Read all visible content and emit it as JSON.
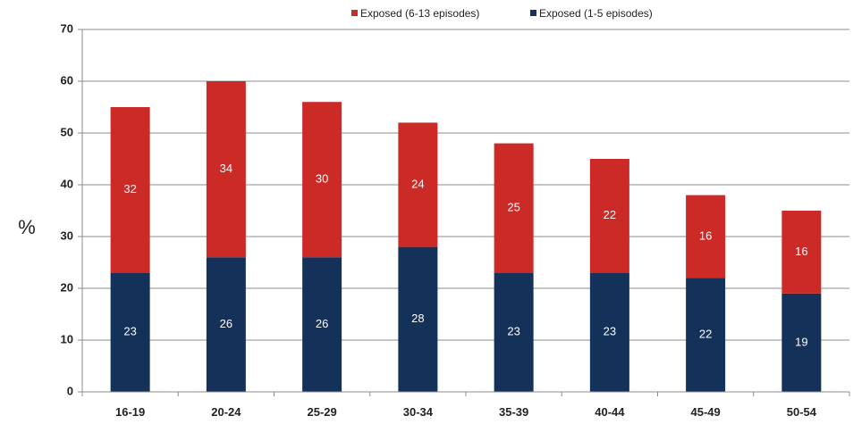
{
  "chart_data": {
    "type": "bar",
    "stacked": true,
    "categories": [
      "16-19",
      "20-24",
      "25-29",
      "30-34",
      "35-39",
      "40-44",
      "45-49",
      "50-54"
    ],
    "series": [
      {
        "name": "Exposed (1-5 episodes)",
        "values": [
          23,
          26,
          26,
          28,
          23,
          23,
          22,
          19
        ],
        "color": "#14315a"
      },
      {
        "name": "Exposed (6-13 episodes)",
        "values": [
          32,
          34,
          30,
          24,
          25,
          22,
          16,
          16
        ],
        "color": "#cc2a27"
      }
    ],
    "legend_order": [
      1,
      0
    ],
    "legend_position": "top-right",
    "ylabel": "%",
    "xlabel": "",
    "ylim": [
      0,
      70
    ],
    "yticks": [
      0,
      10,
      20,
      30,
      40,
      50,
      60,
      70
    ],
    "grid": true
  }
}
